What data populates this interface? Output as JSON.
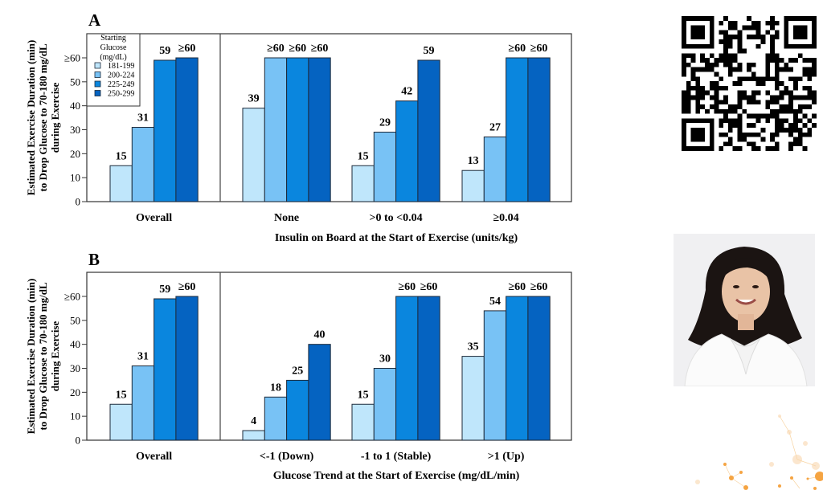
{
  "chart_data": [
    {
      "type": "bar",
      "panel_label": "A",
      "title": "",
      "xlabel": "Insulin on Board at the Start of Exercise (units/kg)",
      "ylabel": [
        "Estimated Exercise Duration (min)",
        "to Drop Glucose to 70-180 mg/dL",
        "during Exercise"
      ],
      "yticks": [
        "0",
        "10",
        "20",
        "30",
        "40",
        "50",
        "≥60"
      ],
      "ylim": [
        0,
        65
      ],
      "categories": [
        "Overall",
        "None",
        ">0 to <0.04",
        "≥0.04"
      ],
      "series": [
        {
          "name": "181-199",
          "color": "#bfe6fb",
          "values": [
            15,
            39,
            15,
            13
          ],
          "labels": [
            "15",
            "39",
            "15",
            "13"
          ]
        },
        {
          "name": "200-224",
          "color": "#78c2f5",
          "values": [
            31,
            60,
            29,
            27
          ],
          "labels": [
            "31",
            "≥60",
            "29",
            "27"
          ]
        },
        {
          "name": "225-249",
          "color": "#0a86de",
          "values": [
            59,
            60,
            42,
            60
          ],
          "labels": [
            "59",
            "≥60",
            "42",
            "≥60"
          ]
        },
        {
          "name": "250-299",
          "color": "#0563c1",
          "values": [
            60,
            60,
            59,
            60
          ],
          "labels": [
            "≥60",
            "≥60",
            "59",
            "≥60"
          ]
        }
      ],
      "legend": {
        "title": [
          "Starting",
          "Glucose",
          "(mg/dL)"
        ],
        "position": "top-left",
        "entries": [
          "181-199",
          "200-224",
          "225-249",
          "250-299"
        ]
      },
      "grid": false
    },
    {
      "type": "bar",
      "panel_label": "B",
      "title": "",
      "xlabel": "Glucose Trend at the Start of Exercise (mg/dL/min)",
      "ylabel": [
        "Estimated Exercise Duration (min)",
        "to Drop Glucose to 70-180 mg/dL",
        "during Exercise"
      ],
      "yticks": [
        "0",
        "10",
        "20",
        "30",
        "40",
        "50",
        "≥60"
      ],
      "ylim": [
        0,
        65
      ],
      "categories": [
        "Overall",
        "<-1 (Down)",
        "-1 to 1 (Stable)",
        ">1 (Up)"
      ],
      "series": [
        {
          "name": "181-199",
          "color": "#bfe6fb",
          "values": [
            15,
            4,
            15,
            35
          ],
          "labels": [
            "15",
            "4",
            "15",
            "35"
          ]
        },
        {
          "name": "200-224",
          "color": "#78c2f5",
          "values": [
            31,
            18,
            30,
            54
          ],
          "labels": [
            "31",
            "18",
            "30",
            "54"
          ]
        },
        {
          "name": "225-249",
          "color": "#0a86de",
          "values": [
            59,
            25,
            60,
            60
          ],
          "labels": [
            "59",
            "25",
            "≥60",
            "≥60"
          ]
        },
        {
          "name": "250-299",
          "color": "#0563c1",
          "values": [
            60,
            40,
            60,
            60
          ],
          "labels": [
            "≥60",
            "40",
            "≥60",
            "≥60"
          ]
        }
      ],
      "grid": false
    }
  ],
  "side": {
    "qr_code": "qr-code-icon",
    "photo": "presenter-portrait",
    "decoration": "orange-network-dots",
    "accent_color": "#f5a442"
  }
}
